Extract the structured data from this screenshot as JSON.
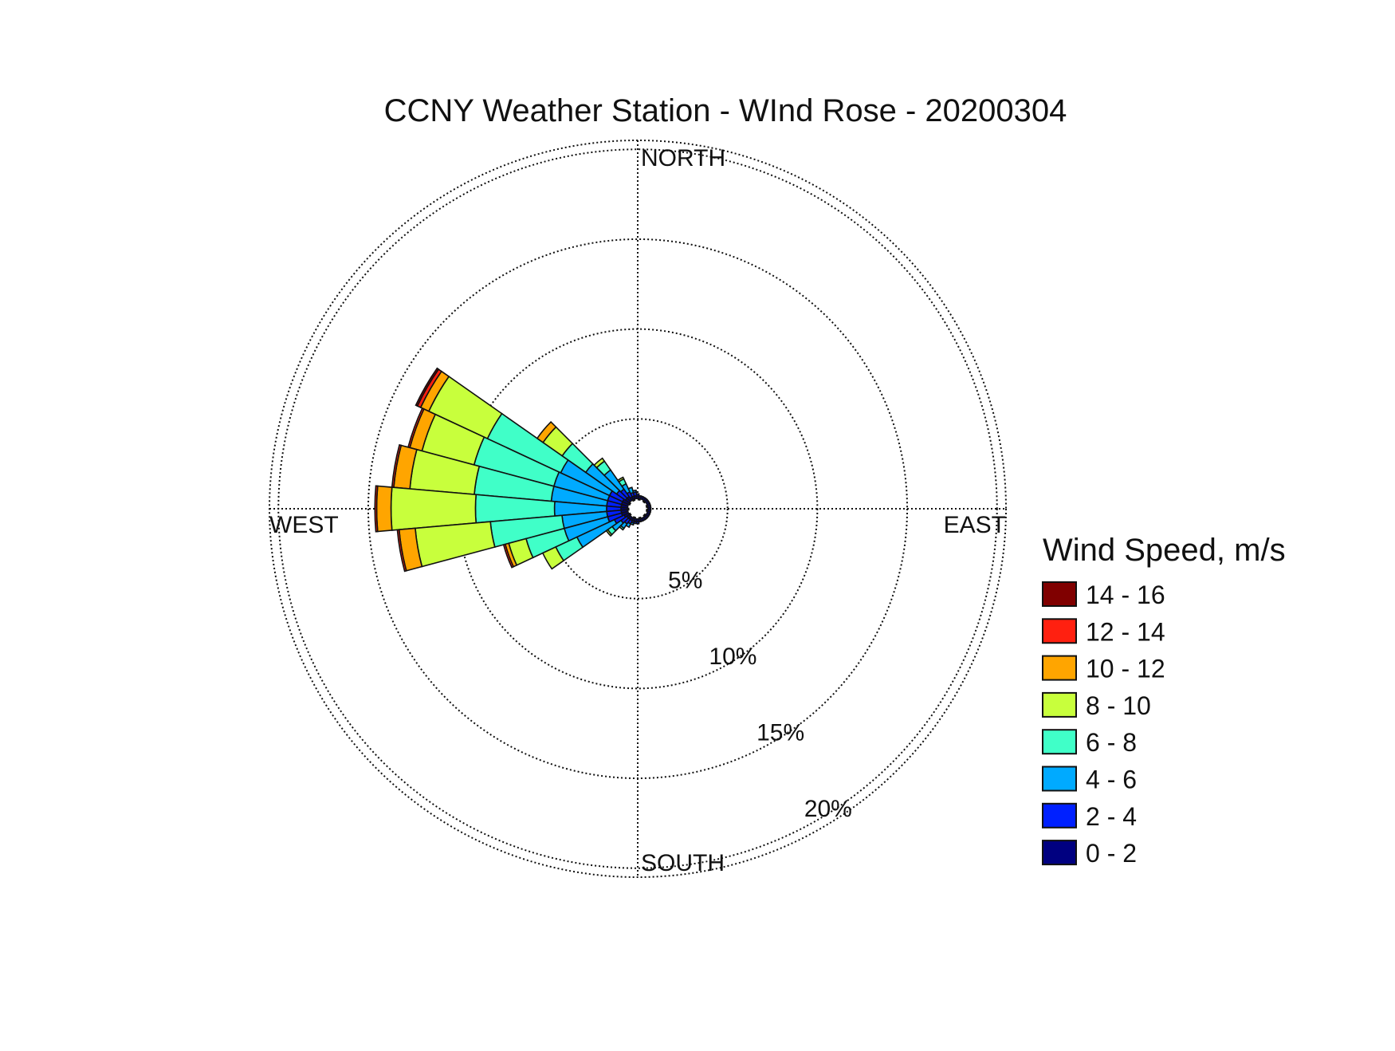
{
  "chart_data": {
    "type": "windrose",
    "title": "CCNY Weather Station - WInd Rose - 20200304",
    "direction_labels": {
      "north": "NORTH",
      "south": "SOUTH",
      "east": "EAST",
      "west": "WEST"
    },
    "radial_ticks": [
      {
        "value": 5,
        "label": "5%"
      },
      {
        "value": 10,
        "label": "10%"
      },
      {
        "value": 15,
        "label": "15%"
      },
      {
        "value": 20,
        "label": "20%"
      }
    ],
    "rmax": 20.5,
    "grid": true,
    "legend": {
      "title": "Wind Speed, m/s",
      "placement": "right",
      "items": [
        {
          "label": "14 - 16",
          "color": "#800000"
        },
        {
          "label": "12 - 14",
          "color": "#ff2010"
        },
        {
          "label": "10 - 12",
          "color": "#ffa500"
        },
        {
          "label": "8 - 10",
          "color": "#c8ff3c"
        },
        {
          "label": "6 - 8",
          "color": "#40ffc8"
        },
        {
          "label": "4 - 6",
          "color": "#00aaff"
        },
        {
          "label": "2 - 4",
          "color": "#0020ff"
        },
        {
          "label": "0 - 2",
          "color": "#000080"
        }
      ]
    },
    "speed_bins": [
      "0 - 2",
      "2 - 4",
      "4 - 6",
      "6 - 8",
      "8 - 10",
      "10 - 12",
      "12 - 14",
      "14 - 16"
    ],
    "sector_width_deg": 10,
    "sectors": [
      {
        "direction_deg": 300,
        "percent": [
          0.4,
          0.8,
          3.0,
          4.5,
          3.6,
          0.5,
          0.2,
          0.1
        ]
      },
      {
        "direction_deg": 290,
        "percent": [
          0.4,
          0.8,
          3.1,
          4.6,
          3.0,
          0.7,
          0.1,
          0
        ]
      },
      {
        "direction_deg": 280,
        "percent": [
          0.4,
          0.8,
          3.1,
          4.3,
          3.6,
          0.9,
          0.1,
          0
        ]
      },
      {
        "direction_deg": 270,
        "percent": [
          0.4,
          0.8,
          2.9,
          4.4,
          4.7,
          0.8,
          0.1,
          0
        ]
      },
      {
        "direction_deg": 260,
        "percent": [
          0.4,
          0.8,
          2.5,
          4.0,
          4.2,
          0.9,
          0.1,
          0
        ]
      },
      {
        "direction_deg": 250,
        "percent": [
          0.4,
          0.8,
          2.5,
          2.2,
          1.0,
          0.2,
          0.1,
          0
        ]
      },
      {
        "direction_deg": 240,
        "percent": [
          0.3,
          0.6,
          2.3,
          1.3,
          0.8,
          0,
          0,
          0
        ]
      },
      {
        "direction_deg": 310,
        "percent": [
          0.3,
          0.6,
          2.1,
          1.6,
          1.3,
          0.4,
          0,
          0
        ]
      },
      {
        "direction_deg": 320,
        "percent": [
          0.3,
          0.5,
          1.3,
          0.6,
          0.2,
          0,
          0,
          0
        ]
      },
      {
        "direction_deg": 330,
        "percent": [
          0.2,
          0.3,
          0.5,
          0.3,
          0.1,
          0,
          0,
          0
        ]
      },
      {
        "direction_deg": 340,
        "percent": [
          0.2,
          0.2,
          0.3,
          0,
          0,
          0,
          0,
          0
        ]
      },
      {
        "direction_deg": 350,
        "percent": [
          0.2,
          0.2,
          0.1,
          0,
          0,
          0,
          0,
          0
        ]
      },
      {
        "direction_deg": 230,
        "percent": [
          0.2,
          0.4,
          0.6,
          0.3,
          0.1,
          0,
          0,
          0
        ]
      },
      {
        "direction_deg": 220,
        "percent": [
          0.2,
          0.3,
          0.3,
          0.1,
          0,
          0,
          0,
          0
        ]
      },
      {
        "direction_deg": 210,
        "percent": [
          0.2,
          0.2,
          0.2,
          0,
          0,
          0,
          0,
          0
        ]
      },
      {
        "direction_deg": 200,
        "percent": [
          0.2,
          0.1,
          0.1,
          0,
          0,
          0,
          0,
          0
        ]
      },
      {
        "direction_deg": 190,
        "percent": [
          0.2,
          0.1,
          0,
          0,
          0,
          0,
          0,
          0
        ]
      },
      {
        "direction_deg": 180,
        "percent": [
          0.2,
          0.1,
          0,
          0,
          0,
          0,
          0,
          0
        ]
      },
      {
        "direction_deg": 170,
        "percent": [
          0.2,
          0,
          0,
          0,
          0,
          0,
          0,
          0
        ]
      },
      {
        "direction_deg": 160,
        "percent": [
          0.2,
          0,
          0,
          0,
          0,
          0,
          0,
          0
        ]
      },
      {
        "direction_deg": 150,
        "percent": [
          0.2,
          0,
          0,
          0,
          0,
          0,
          0,
          0
        ]
      },
      {
        "direction_deg": 140,
        "percent": [
          0.2,
          0,
          0,
          0,
          0,
          0,
          0,
          0
        ]
      },
      {
        "direction_deg": 130,
        "percent": [
          0.2,
          0,
          0,
          0,
          0,
          0,
          0,
          0
        ]
      },
      {
        "direction_deg": 120,
        "percent": [
          0.2,
          0,
          0,
          0,
          0,
          0,
          0,
          0
        ]
      },
      {
        "direction_deg": 110,
        "percent": [
          0.2,
          0,
          0,
          0,
          0,
          0,
          0,
          0
        ]
      },
      {
        "direction_deg": 100,
        "percent": [
          0.2,
          0,
          0,
          0,
          0,
          0,
          0,
          0
        ]
      },
      {
        "direction_deg": 90,
        "percent": [
          0.2,
          0,
          0,
          0,
          0,
          0,
          0,
          0
        ]
      },
      {
        "direction_deg": 80,
        "percent": [
          0.2,
          0,
          0,
          0,
          0,
          0,
          0,
          0
        ]
      },
      {
        "direction_deg": 70,
        "percent": [
          0.2,
          0,
          0,
          0,
          0,
          0,
          0,
          0
        ]
      },
      {
        "direction_deg": 60,
        "percent": [
          0.2,
          0,
          0,
          0,
          0,
          0,
          0,
          0
        ]
      },
      {
        "direction_deg": 50,
        "percent": [
          0.2,
          0,
          0,
          0,
          0,
          0,
          0,
          0
        ]
      },
      {
        "direction_deg": 40,
        "percent": [
          0.2,
          0,
          0,
          0,
          0,
          0,
          0,
          0
        ]
      },
      {
        "direction_deg": 30,
        "percent": [
          0.2,
          0,
          0,
          0,
          0,
          0,
          0,
          0
        ]
      },
      {
        "direction_deg": 20,
        "percent": [
          0.2,
          0,
          0,
          0,
          0,
          0,
          0,
          0
        ]
      },
      {
        "direction_deg": 10,
        "percent": [
          0.2,
          0,
          0,
          0,
          0,
          0,
          0,
          0
        ]
      },
      {
        "direction_deg": 0,
        "percent": [
          0.2,
          0.1,
          0,
          0,
          0,
          0,
          0,
          0
        ]
      }
    ]
  }
}
